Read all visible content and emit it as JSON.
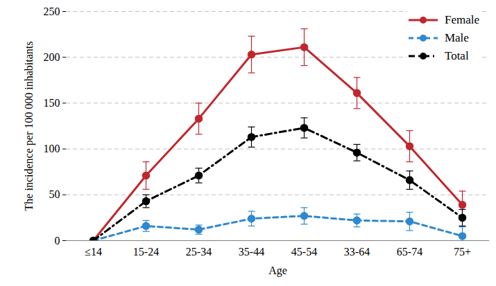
{
  "chart_data": {
    "type": "line",
    "x_label": "Age",
    "y_label": "The incidence per 100 000 inhabitants",
    "categories": [
      "≤14",
      "15-24",
      "25-34",
      "35-44",
      "45-54",
      "33-64",
      "65-74",
      "75+"
    ],
    "series": [
      {
        "name": "Female",
        "color": "#c0272d",
        "line_style": "solid",
        "marker": "circle",
        "values": [
          0,
          71,
          133,
          203,
          211,
          161,
          103,
          39
        ],
        "errors": [
          0,
          15,
          17,
          20,
          20,
          17,
          17,
          15
        ]
      },
      {
        "name": "Male",
        "color": "#2f88cf",
        "line_style": "dashed",
        "marker": "circle",
        "values": [
          0,
          16,
          12,
          24,
          27,
          22,
          21,
          5
        ],
        "errors": [
          0,
          6,
          5,
          8,
          9,
          7,
          10,
          10
        ]
      },
      {
        "name": "Total",
        "color": "#000000",
        "line_style": "dashdot",
        "marker": "circle",
        "values": [
          0,
          43,
          71,
          113,
          123,
          96,
          66,
          25
        ],
        "errors": [
          0,
          7,
          8,
          11,
          11,
          9,
          10,
          9
        ]
      }
    ],
    "ylim": [
      0,
      250
    ],
    "yticks": [
      0,
      50,
      100,
      150,
      200,
      250
    ],
    "grid": true,
    "legend": "top-right"
  }
}
